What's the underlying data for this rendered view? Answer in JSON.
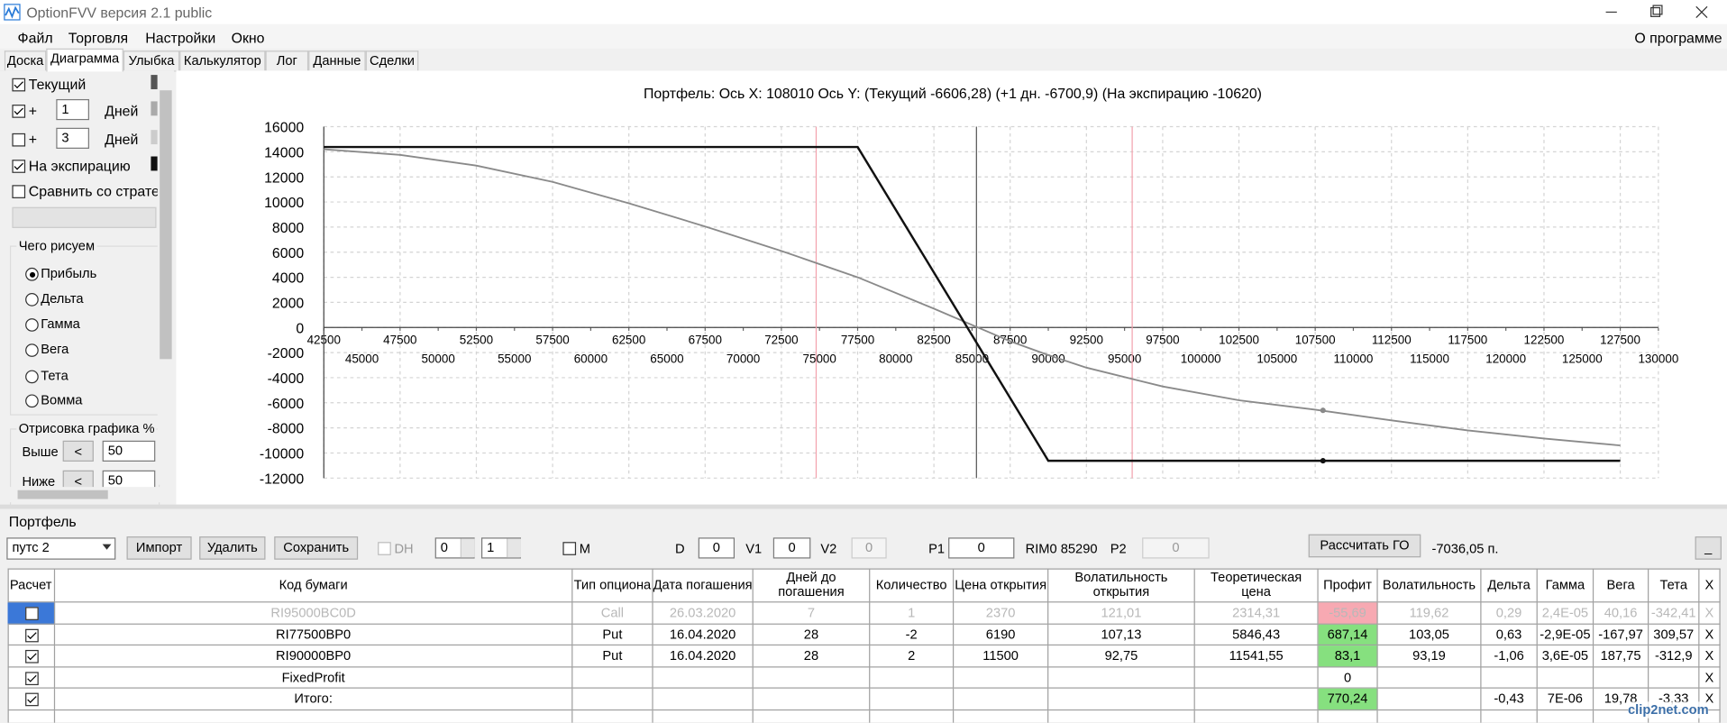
{
  "window": {
    "title": "OptionFVV версия 2.1 public"
  },
  "menu": [
    "Файл",
    "Торговля",
    "Настройки",
    "Окно"
  ],
  "menu_right": "О программе",
  "tabs": [
    "Доска",
    "Диаграмма",
    "Улыбка",
    "Калькулятор",
    "Лог",
    "Данные",
    "Сделки"
  ],
  "active_tab": 1,
  "left_panel": {
    "curves": [
      {
        "checked": true,
        "label": "Текущий",
        "color": "#555555"
      },
      {
        "checked": true,
        "prefix": "+",
        "days": "1",
        "unit": "Дней",
        "color": "#aaaaaa"
      },
      {
        "checked": false,
        "prefix": "+",
        "days": "3",
        "unit": "Дней",
        "color": "#cccccc"
      },
      {
        "checked": true,
        "label": "На экспирацию",
        "color": "#111111"
      }
    ],
    "compare": {
      "checked": false,
      "label": "Сравнить со стратеги"
    },
    "draw_group": {
      "title": "Чего рисуем",
      "options": [
        "Прибыль",
        "Дельта",
        "Гамма",
        "Вега",
        "Тета",
        "Вомма"
      ],
      "selected": 0
    },
    "range_group": {
      "title": "Отрисовка графика %",
      "rows": [
        {
          "label": "Выше",
          "button": "<",
          "value": "50"
        },
        {
          "label": "Ниже",
          "button": "<",
          "value": "50"
        }
      ]
    }
  },
  "chart_data": {
    "type": "line",
    "title": "Портфель: Ось X: 108010 Ось Y:  (Текущий -6606,28)  (+1 дн. -6700,9)  (На экспирацию -10620)",
    "x": [
      42500,
      47500,
      52500,
      57500,
      62500,
      67500,
      72500,
      77500,
      82500,
      87500,
      90000,
      92500,
      97500,
      102500,
      107500,
      112500,
      117500,
      122500,
      127500
    ],
    "series": [
      {
        "name": "Текущий",
        "color": "#8a8a8a",
        "values": [
          14200,
          13750,
          12900,
          11600,
          9900,
          8050,
          6100,
          4000,
          1500,
          -1100,
          -2200,
          -3200,
          -4700,
          -5800,
          -6550,
          -7400,
          -8200,
          -8850,
          -9400
        ]
      },
      {
        "name": "На экспирацию",
        "color": "#111111",
        "values": [
          14380,
          14380,
          14380,
          14380,
          14380,
          14380,
          14380,
          14380,
          4380,
          -5620,
          -10620,
          -10620,
          -10620,
          -10620,
          -10620,
          -10620,
          -10620,
          -10620,
          -10620
        ]
      }
    ],
    "cursor": {
      "x": 108010,
      "values": [
        -6606.28,
        -10620
      ]
    },
    "price_line": 85290,
    "range_lines": [
      74780,
      95500
    ],
    "xlim": [
      42500,
      130000
    ],
    "xticks": [
      42500,
      45000,
      47500,
      50000,
      52500,
      55000,
      57500,
      60000,
      62500,
      65000,
      67500,
      70000,
      72500,
      75000,
      77500,
      80000,
      82500,
      85000,
      87500,
      90000,
      92500,
      95000,
      97500,
      100000,
      102500,
      105000,
      107500,
      110000,
      112500,
      115000,
      117500,
      120000,
      122500,
      125000,
      127500,
      130000
    ],
    "ylim": [
      -12000,
      16000
    ],
    "yticks": [
      -12000,
      -10000,
      -8000,
      -6000,
      -4000,
      -2000,
      0,
      2000,
      4000,
      6000,
      8000,
      10000,
      12000,
      14000,
      16000
    ],
    "grid": true
  },
  "portfolio": {
    "title": "Портфель",
    "strategy": "путс 2",
    "buttons": [
      "Импорт",
      "Удалить",
      "Сохранить"
    ],
    "dh": {
      "label": "DH",
      "checked": false
    },
    "spins": [
      "0",
      "1"
    ],
    "m": {
      "label": "M",
      "checked": false
    },
    "fields": [
      {
        "label": "D",
        "value": "0"
      },
      {
        "label": "V1",
        "value": "0"
      },
      {
        "label": "V2",
        "value": "0"
      },
      {
        "label": "P1",
        "value": "0"
      }
    ],
    "instrument": "RIM0 85290",
    "p2": {
      "label": "P2",
      "value": "0"
    },
    "calc_button": "Рассчитать ГО",
    "margin": "-7036,05 п.",
    "minimize": "_"
  },
  "table": {
    "headers": [
      "Расчет",
      "Код бумаги",
      "Тип опциона",
      "Дата погашения",
      "Дней до погашения",
      "Количество",
      "Цена открытия",
      "Волатильность открытия",
      "Теоретическая цена",
      "Профит",
      "Волатильность",
      "Дельта",
      "Гамма",
      "Вега",
      "Тета",
      "X"
    ],
    "rows": [
      {
        "calc": false,
        "disabled": true,
        "selected": true,
        "profit_color": "#f7a9b2",
        "cells": [
          "RI95000BC0D",
          "Call",
          "26.03.2020",
          "7",
          "1",
          "2370",
          "121,01",
          "2314,31",
          "-55,69",
          "119,62",
          "0,29",
          "2,4E-05",
          "40,16",
          "-342,41",
          "X"
        ]
      },
      {
        "calc": true,
        "disabled": false,
        "selected": false,
        "profit_color": "#86e07f",
        "cells": [
          "RI77500BP0",
          "Put",
          "16.04.2020",
          "28",
          "-2",
          "6190",
          "107,13",
          "5846,43",
          "687,14",
          "103,05",
          "0,63",
          "-2,9E-05",
          "-167,97",
          "309,57",
          "X"
        ]
      },
      {
        "calc": true,
        "disabled": false,
        "selected": false,
        "profit_color": "#86e07f",
        "cells": [
          "RI90000BP0",
          "Put",
          "16.04.2020",
          "28",
          "2",
          "11500",
          "92,75",
          "11541,55",
          "83,1",
          "93,19",
          "-1,06",
          "3,6E-05",
          "187,75",
          "-312,9",
          "X"
        ]
      },
      {
        "calc": true,
        "disabled": false,
        "selected": false,
        "profit_color": null,
        "cells": [
          "FixedProfit",
          null,
          null,
          null,
          null,
          null,
          null,
          null,
          "0",
          null,
          null,
          null,
          null,
          null,
          "X"
        ]
      },
      {
        "calc": true,
        "disabled": false,
        "selected": false,
        "profit_color": "#86e07f",
        "cells": [
          "Итого:",
          null,
          null,
          null,
          null,
          null,
          null,
          null,
          "770,24",
          null,
          "-0,43",
          "7E-06",
          "19,78",
          "-3,33",
          "X"
        ]
      }
    ]
  },
  "watermark": "clip2net.com"
}
